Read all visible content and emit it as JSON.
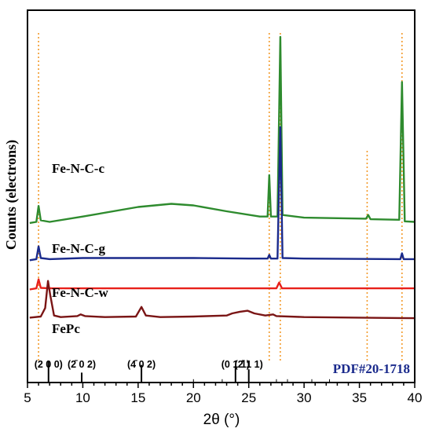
{
  "chart_data": {
    "type": "line",
    "title": "",
    "xlabel": "2θ (°)",
    "ylabel": "Counts (electrons)",
    "xlim": [
      5,
      40
    ],
    "xticks": [
      "5",
      "10",
      "15",
      "20",
      "25",
      "30",
      "35",
      "40"
    ],
    "grid": false,
    "legend": "labels next to each trace",
    "y_units": "arbitrary (stacked, offset traces)",
    "series": [
      {
        "name": "Fe-N-C-c",
        "color": "#2e8b2e",
        "baseline": 0.3,
        "points": [
          [
            5.2,
            0.3
          ],
          [
            5.8,
            0.302
          ],
          [
            6.0,
            0.332
          ],
          [
            6.2,
            0.305
          ],
          [
            7,
            0.302
          ],
          [
            10,
            0.312
          ],
          [
            15,
            0.33
          ],
          [
            18,
            0.336
          ],
          [
            20,
            0.333
          ],
          [
            23,
            0.322
          ],
          [
            26,
            0.312
          ],
          [
            26.7,
            0.312
          ],
          [
            26.85,
            0.39
          ],
          [
            27.0,
            0.312
          ],
          [
            27.6,
            0.312
          ],
          [
            27.85,
            0.65
          ],
          [
            28.05,
            0.315
          ],
          [
            30,
            0.31
          ],
          [
            35.6,
            0.308
          ],
          [
            35.8,
            0.315
          ],
          [
            36,
            0.307
          ],
          [
            38.6,
            0.306
          ],
          [
            38.85,
            0.565
          ],
          [
            39.1,
            0.303
          ],
          [
            40,
            0.302
          ]
        ]
      },
      {
        "name": "Fe-N-C-g",
        "color": "#1a2a8c",
        "baseline": 0.23,
        "points": [
          [
            5.2,
            0.23
          ],
          [
            5.8,
            0.232
          ],
          [
            6.0,
            0.256
          ],
          [
            6.2,
            0.234
          ],
          [
            7,
            0.232
          ],
          [
            10,
            0.234
          ],
          [
            15,
            0.234
          ],
          [
            20,
            0.234
          ],
          [
            25,
            0.233
          ],
          [
            26.7,
            0.233
          ],
          [
            26.85,
            0.24
          ],
          [
            27.0,
            0.233
          ],
          [
            27.6,
            0.233
          ],
          [
            27.85,
            0.48
          ],
          [
            28.05,
            0.234
          ],
          [
            30,
            0.233
          ],
          [
            38.7,
            0.232
          ],
          [
            38.85,
            0.243
          ],
          [
            39.0,
            0.232
          ],
          [
            40,
            0.232
          ]
        ]
      },
      {
        "name": "Fe-N-C-w",
        "color": "#e8201a",
        "baseline": 0.175,
        "points": [
          [
            5.2,
            0.175
          ],
          [
            5.8,
            0.177
          ],
          [
            6.0,
            0.194
          ],
          [
            6.2,
            0.178
          ],
          [
            7,
            0.177
          ],
          [
            10,
            0.177
          ],
          [
            15,
            0.177
          ],
          [
            20,
            0.177
          ],
          [
            25,
            0.177
          ],
          [
            27.5,
            0.177
          ],
          [
            27.75,
            0.188
          ],
          [
            28.0,
            0.177
          ],
          [
            30,
            0.177
          ],
          [
            40,
            0.177
          ]
        ]
      },
      {
        "name": "FePc",
        "color": "#7a1515",
        "baseline": 0.12,
        "points": [
          [
            5.2,
            0.122
          ],
          [
            6.2,
            0.124
          ],
          [
            6.6,
            0.14
          ],
          [
            6.85,
            0.191
          ],
          [
            7.05,
            0.165
          ],
          [
            7.4,
            0.126
          ],
          [
            8,
            0.123
          ],
          [
            9.5,
            0.125
          ],
          [
            9.8,
            0.128
          ],
          [
            10.2,
            0.125
          ],
          [
            12,
            0.123
          ],
          [
            14.8,
            0.124
          ],
          [
            15.3,
            0.142
          ],
          [
            15.7,
            0.126
          ],
          [
            17,
            0.123
          ],
          [
            20,
            0.124
          ],
          [
            23,
            0.126
          ],
          [
            23.5,
            0.13
          ],
          [
            24.2,
            0.133
          ],
          [
            24.9,
            0.135
          ],
          [
            25.5,
            0.13
          ],
          [
            26.5,
            0.126
          ],
          [
            27.2,
            0.128
          ],
          [
            27.5,
            0.125
          ],
          [
            30,
            0.123
          ],
          [
            35,
            0.122
          ],
          [
            40,
            0.121
          ]
        ]
      }
    ],
    "reference": {
      "label": "PDF#20-1718",
      "color": "#1a2a8c",
      "sticks": [
        {
          "x": 6.9,
          "height": 1.0,
          "label": "(2 0 0)"
        },
        {
          "x": 9.9,
          "height": 0.45,
          "label": "(2̄ 0 2)"
        },
        {
          "x": 15.3,
          "height": 0.8,
          "label": "(4̄ 0 2)"
        },
        {
          "x": 23.8,
          "height": 0.75,
          "label": "(0 1 1)"
        },
        {
          "x": 25.0,
          "height": 0.6,
          "label": "(2̄ 1 1)"
        },
        {
          "x": 20.0,
          "height": 0.15,
          "label": ""
        },
        {
          "x": 22.6,
          "height": 0.15,
          "label": ""
        },
        {
          "x": 27.5,
          "height": 0.15,
          "label": ""
        },
        {
          "x": 28.5,
          "height": 0.15,
          "label": ""
        },
        {
          "x": 30.7,
          "height": 0.15,
          "label": ""
        },
        {
          "x": 32.3,
          "height": 0.15,
          "label": ""
        }
      ]
    },
    "guides": {
      "color": "#f39a2a",
      "positions": [
        6.0,
        26.85,
        27.85,
        35.7,
        38.85
      ]
    }
  }
}
